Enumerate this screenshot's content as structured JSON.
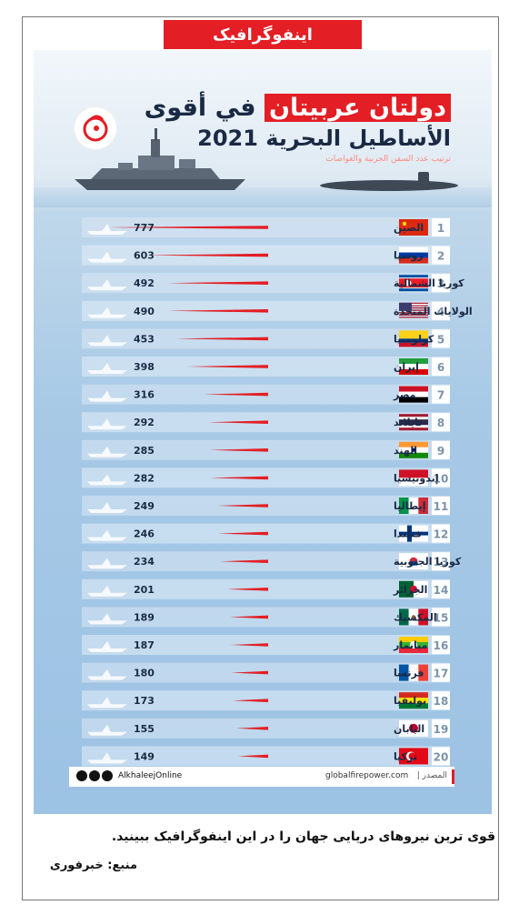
{
  "header_tag": "اینفوگرافیک",
  "title": {
    "highlight": "دولتان عربيتان",
    "rest": "في أقوى",
    "line2": "الأساطيل البحرية 2021",
    "subtitle": "ترتيب عدد السفن الحربية والغواصات"
  },
  "source": {
    "label": "المصدر |",
    "site": "globalfirepower.com",
    "handle": "AlkhaleejOnline"
  },
  "caption": "قوی ترین نیروهای دریایی جهان را در این اینفوگرافیک ببینید.",
  "source_note": "منبع: خبرفوری",
  "colors": {
    "accent": "#e31e24",
    "navy": "#1a2a44",
    "panel": "#9cc2e4"
  },
  "chart_data": {
    "type": "bar",
    "orientation": "horizontal",
    "ranks": [
      "1",
      "2",
      "3",
      "4",
      "5",
      "6",
      "7",
      "8",
      "9",
      "10",
      "11",
      "12",
      "13",
      "14",
      "15",
      "16",
      "17",
      "18",
      "19",
      "20"
    ],
    "categories": [
      "الصين",
      "روسيا",
      "كوريا الشمالية",
      "الولايات المتحدة",
      "كولومبيا",
      "إيران",
      "مصر",
      "تايلاند",
      "الهند",
      "إندونيسيا",
      "إيطاليا",
      "فنلندا",
      "كوريا الجنوبية",
      "الجزائر",
      "المكسيك",
      "ميانمار",
      "فرنسا",
      "بوليفيا",
      "اليابان",
      "تركيا"
    ],
    "values": [
      777,
      603,
      492,
      490,
      453,
      398,
      316,
      292,
      285,
      282,
      249,
      246,
      234,
      201,
      189,
      187,
      180,
      173,
      155,
      149
    ],
    "flags": [
      "china-flag",
      "russia-flag",
      "north-korea-flag",
      "usa-flag",
      "colombia-flag",
      "iran-flag",
      "egypt-flag",
      "thailand-flag",
      "india-flag",
      "indonesia-flag",
      "italy-flag",
      "finland-flag",
      "south-korea-flag",
      "algeria-flag",
      "mexico-flag",
      "myanmar-flag",
      "france-flag",
      "bolivia-flag",
      "japan-flag",
      "turkey-flag"
    ]
  }
}
